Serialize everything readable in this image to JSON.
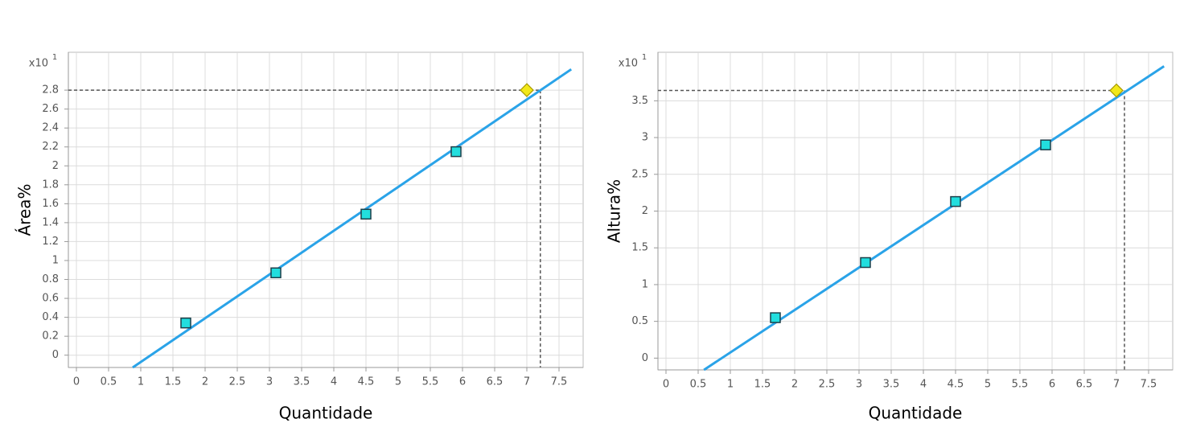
{
  "chart_data": [
    {
      "type": "scatter",
      "ylabel": "Área%",
      "xlabel": "Quantidade",
      "y_scale_label": "x10",
      "y_scale_exponent": "1",
      "xlim": [
        -0.125,
        7.875
      ],
      "xticks": [
        0,
        0.5,
        1,
        1.5,
        2,
        2.5,
        3,
        3.5,
        4,
        4.5,
        5,
        5.5,
        6,
        6.5,
        7,
        7.5
      ],
      "ylim": [
        -0.13,
        3.2
      ],
      "yticks": [
        0,
        0.2,
        0.4,
        0.6,
        0.8,
        1,
        1.2,
        1.4,
        1.6,
        1.8,
        2,
        2.2,
        2.4,
        2.6,
        2.8
      ],
      "grid": true,
      "guide_x": 7.21,
      "guide_y": 2.8,
      "series": [
        {
          "type": "line",
          "color": "#2aa3e8",
          "x": [
            0.875,
            7.69
          ],
          "values": [
            -0.13,
            3.02
          ]
        },
        {
          "marker": "square",
          "color": "#22dede",
          "x": [
            1.7,
            3.1,
            4.5,
            5.9
          ],
          "values": [
            0.34,
            0.87,
            1.49,
            2.15
          ]
        },
        {
          "marker": "diamond",
          "color": "#f2e81a",
          "x": [
            7.0
          ],
          "values": [
            2.8
          ]
        }
      ]
    },
    {
      "type": "scatter",
      "ylabel": "Altura%",
      "xlabel": "Quantidade",
      "y_scale_label": "x10",
      "y_scale_exponent": "1",
      "xlim": [
        -0.125,
        7.875
      ],
      "xticks": [
        0,
        0.5,
        1,
        1.5,
        2,
        2.5,
        3,
        3.5,
        4,
        4.5,
        5,
        5.5,
        6,
        6.5,
        7,
        7.5
      ],
      "ylim": [
        -0.16,
        4.16
      ],
      "yticks": [
        0,
        0.5,
        1,
        1.5,
        2,
        2.5,
        3,
        3.5
      ],
      "grid": true,
      "guide_x": 7.125,
      "guide_y": 3.64,
      "series": [
        {
          "type": "line",
          "color": "#2aa3e8",
          "x": [
            0.59,
            7.74
          ],
          "values": [
            -0.16,
            3.97
          ]
        },
        {
          "marker": "square",
          "color": "#22dede",
          "x": [
            1.7,
            3.1,
            4.5,
            5.9
          ],
          "values": [
            0.55,
            1.3,
            2.13,
            2.9
          ]
        },
        {
          "marker": "diamond",
          "color": "#f2e81a",
          "x": [
            7.0
          ],
          "values": [
            3.64
          ]
        }
      ]
    }
  ]
}
